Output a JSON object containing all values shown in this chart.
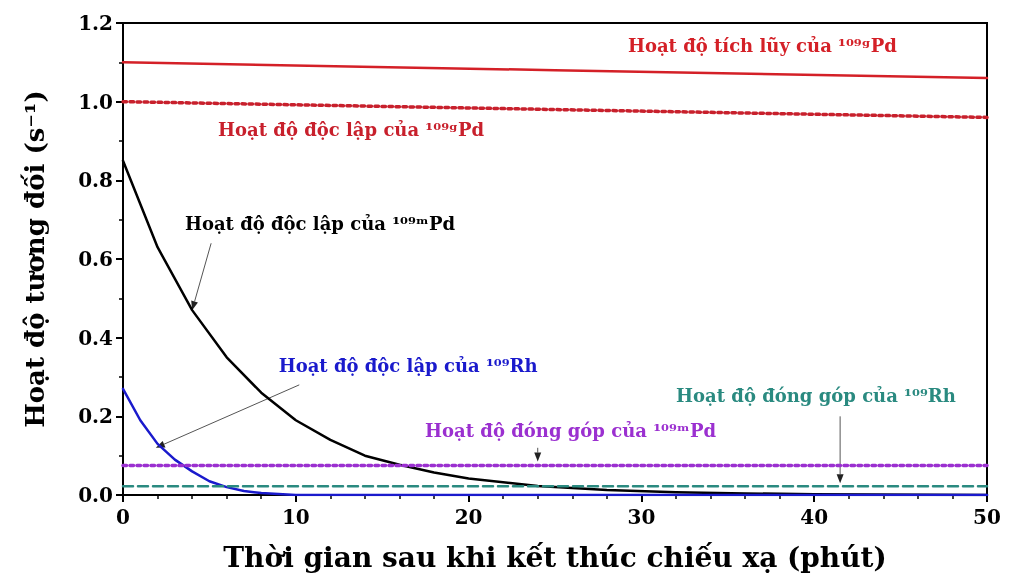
{
  "chart_data": {
    "type": "line",
    "xlabel": "Thời gian sau khi kết thúc chiếu xạ (phút)",
    "ylabel": "Hoạt độ tương đối (s⁻¹)",
    "xlim": [
      0,
      50
    ],
    "xticks": [
      0,
      10,
      20,
      30,
      40,
      50
    ],
    "ylim": [
      0,
      1.2
    ],
    "yticks": [
      {
        "value": 0,
        "label": "0.0"
      },
      0.2,
      0.4,
      0.6,
      0.8,
      {
        "value": 1,
        "label": "1.0"
      },
      1.2
    ],
    "grid": false,
    "legend": false,
    "series": [
      {
        "name": "Hoạt độ tích lũy của ¹⁰⁹ᵍPd",
        "color": "#d42027",
        "line_style": "solid",
        "x": [
          0,
          25,
          50
        ],
        "values": [
          1.1,
          1.08,
          1.06
        ]
      },
      {
        "name": "Hoạt độ độc lập của ¹⁰⁹ᵍPd",
        "color": "#c8202c",
        "line_style": "dotted",
        "x": [
          0,
          25,
          50
        ],
        "values": [
          1.0,
          0.98,
          0.96
        ]
      },
      {
        "name": "Hoạt độ độc lập của ¹⁰⁹ᵐPd",
        "color": "#000000",
        "line_style": "solid",
        "x": [
          0,
          2,
          4,
          6,
          8,
          10,
          12,
          14,
          16,
          18,
          20,
          24,
          28,
          32,
          36,
          40,
          50
        ],
        "values": [
          0.85,
          0.63,
          0.47,
          0.35,
          0.26,
          0.19,
          0.14,
          0.1,
          0.077,
          0.057,
          0.042,
          0.023,
          0.013,
          0.007,
          0.004,
          0.002,
          0
        ]
      },
      {
        "name": "Hoạt độ độc lập của ¹⁰⁹Rh",
        "color": "#1a1acc",
        "line_style": "solid",
        "x": [
          0,
          1,
          2,
          3,
          4,
          5,
          6,
          7,
          8,
          10,
          20,
          50
        ],
        "values": [
          0.27,
          0.19,
          0.13,
          0.09,
          0.06,
          0.035,
          0.02,
          0.01,
          0.005,
          0,
          0,
          0
        ]
      },
      {
        "name": "Hoạt độ đóng góp của ¹⁰⁹Rh",
        "color": "#2a8a80",
        "line_style": "dashed",
        "x": [
          0,
          50
        ],
        "values": [
          0.022,
          0.022
        ]
      },
      {
        "name": "Hoạt độ đóng góp của ¹⁰⁹ᵐPd",
        "color": "#9b30d0",
        "line_style": "dotted",
        "x": [
          0,
          50
        ],
        "values": [
          0.075,
          0.075
        ]
      }
    ]
  }
}
